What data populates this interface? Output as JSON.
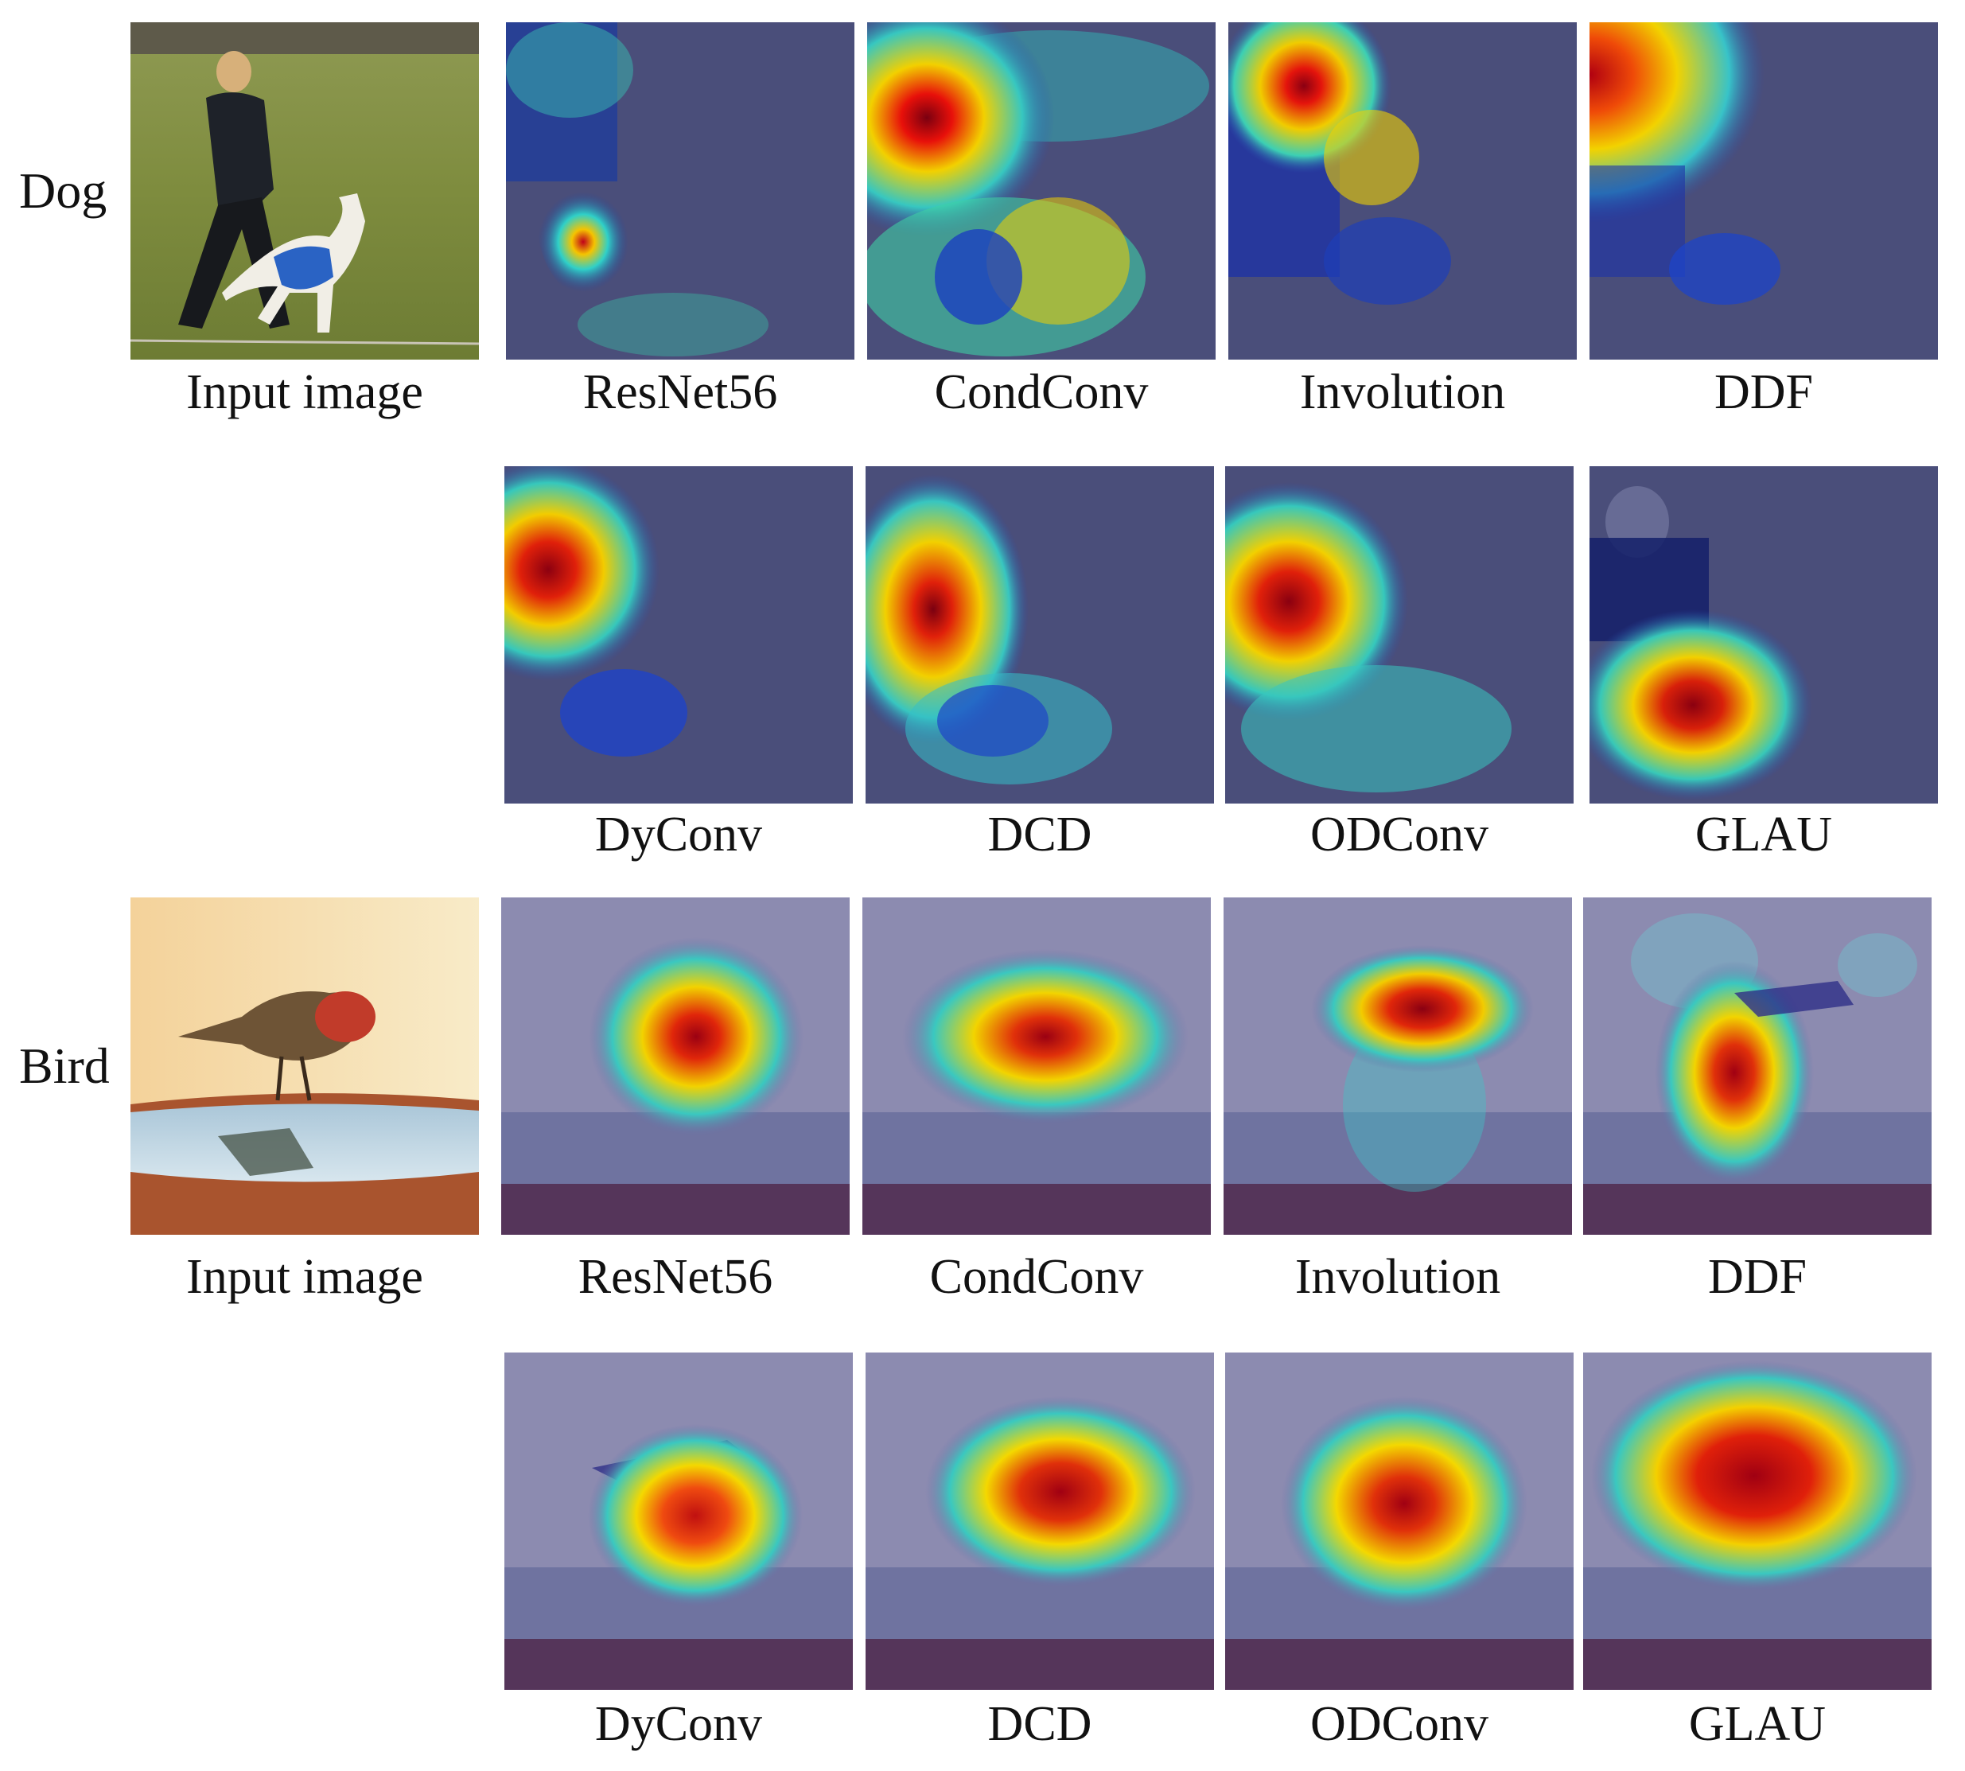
{
  "rows": [
    {
      "label": "Dog",
      "top": {
        "input_caption": "Input image",
        "captions": [
          "ResNet56",
          "CondConv",
          "Involution",
          "DDF"
        ]
      },
      "bottom": {
        "captions": [
          "DyConv",
          "DCD",
          "ODConv",
          "GLAU"
        ]
      }
    },
    {
      "label": "Bird",
      "top": {
        "input_caption": "Input image",
        "captions": [
          "ResNet56",
          "CondConv",
          "Involution",
          "DDF"
        ]
      },
      "bottom": {
        "captions": [
          "DyConv",
          "DCD",
          "ODConv",
          "GLAU"
        ]
      }
    }
  ]
}
